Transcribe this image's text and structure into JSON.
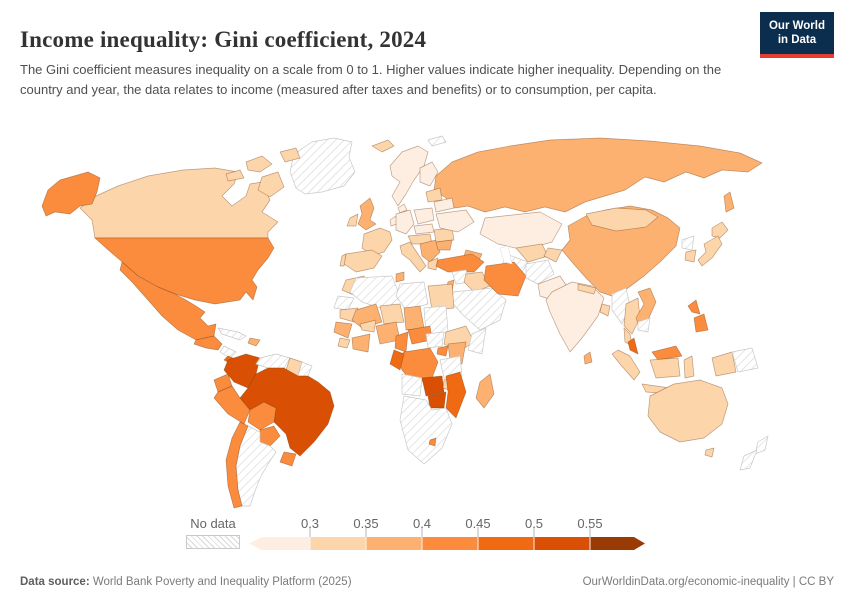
{
  "header": {
    "title": "Income inequality: Gini coefficient, 2024",
    "subtitle": "The Gini coefficient measures inequality on a scale from 0 to 1. Higher values indicate higher inequality. Depending on the country and year, the data relates to income (measured after taxes and benefits) or to consumption, per capita.",
    "logo_line1": "Our World",
    "logo_line2": "in Data",
    "logo_bg": "#0c2e4e",
    "logo_accent": "#e23e32"
  },
  "legend": {
    "no_data_label": "No data",
    "tick_labels": [
      "0.3",
      "0.35",
      "0.4",
      "0.45",
      "0.5",
      "0.55"
    ],
    "palette": [
      "#fdeee1",
      "#fdd5ab",
      "#fdb171",
      "#fb8c3d",
      "#f06913",
      "#d94f04",
      "#9a3a04"
    ],
    "no_data_pattern": "diagonal-hatch",
    "hatch_line_color": "#d8d8d8",
    "hatch_border_color": "#c9c9c9"
  },
  "footer": {
    "source_label": "Data source:",
    "source_text": " World Bank Poverty and Inequality Platform (2025)",
    "right_text": "OurWorldinData.org/economic-inequality | CC BY"
  },
  "chart_data": {
    "type": "heatmap",
    "subtype": "choropleth-world-map",
    "title": "Income inequality: Gini coefficient, 2024",
    "measure": "Gini coefficient (scale 0 to 1)",
    "bins": [
      "<0.3",
      "0.3–0.35",
      "0.35–0.4",
      "0.4–0.45",
      "0.45–0.5",
      "0.5–0.55",
      ">0.55",
      "No data"
    ],
    "legend_ticks": [
      0.3,
      0.35,
      0.4,
      0.45,
      0.5,
      0.55
    ],
    "regions": [
      {
        "id": "russia",
        "name": "Russia",
        "bin": 2
      },
      {
        "id": "sakhalin",
        "name": "Russia (Sakhalin)",
        "bin": 2
      },
      {
        "id": "greenland",
        "name": "Greenland",
        "bin": "nd"
      },
      {
        "id": "canada",
        "name": "Canada",
        "bin": 1
      },
      {
        "id": "canada-island-1",
        "name": "Canada (Arctic islands)",
        "bin": 1
      },
      {
        "id": "canada-island-2",
        "name": "Canada (Arctic islands)",
        "bin": 1
      },
      {
        "id": "canada-island-3",
        "name": "Canada (Arctic islands)",
        "bin": 1
      },
      {
        "id": "baffin-island",
        "name": "Canada (Baffin Island)",
        "bin": 1
      },
      {
        "id": "alaska",
        "name": "United States (Alaska)",
        "bin": 3
      },
      {
        "id": "usa",
        "name": "United States",
        "bin": 3
      },
      {
        "id": "mexico",
        "name": "Mexico",
        "bin": 3
      },
      {
        "id": "central-america",
        "name": "Central America",
        "bin": 3
      },
      {
        "id": "nicaragua",
        "name": "Nicaragua",
        "bin": "nd"
      },
      {
        "id": "costa-rica-panama",
        "name": "Costa Rica / Panama",
        "bin": 4
      },
      {
        "id": "cuba",
        "name": "Cuba",
        "bin": "nd"
      },
      {
        "id": "hispaniola",
        "name": "Dominican Republic / Haiti",
        "bin": 2
      },
      {
        "id": "colombia",
        "name": "Colombia",
        "bin": 5
      },
      {
        "id": "venezuela",
        "name": "Venezuela",
        "bin": "nd"
      },
      {
        "id": "guyana",
        "name": "Guyana",
        "bin": 1
      },
      {
        "id": "suriname",
        "name": "Suriname",
        "bin": "nd"
      },
      {
        "id": "ecuador",
        "name": "Ecuador",
        "bin": 3
      },
      {
        "id": "peru",
        "name": "Peru",
        "bin": 3
      },
      {
        "id": "bolivia",
        "name": "Bolivia",
        "bin": 3
      },
      {
        "id": "brazil",
        "name": "Brazil",
        "bin": 5
      },
      {
        "id": "paraguay",
        "name": "Paraguay",
        "bin": 3
      },
      {
        "id": "uruguay",
        "name": "Uruguay",
        "bin": 3
      },
      {
        "id": "argentina",
        "name": "Argentina",
        "bin": "nd"
      },
      {
        "id": "chile",
        "name": "Chile",
        "bin": 3
      },
      {
        "id": "iceland",
        "name": "Iceland",
        "bin": 1
      },
      {
        "id": "norway-sweden",
        "name": "Norway / Sweden",
        "bin": 0
      },
      {
        "id": "finland",
        "name": "Finland",
        "bin": 0
      },
      {
        "id": "svalbard",
        "name": "Svalbard",
        "bin": "nd"
      },
      {
        "id": "denmark",
        "name": "Denmark",
        "bin": 0
      },
      {
        "id": "uk",
        "name": "United Kingdom",
        "bin": 2
      },
      {
        "id": "ireland",
        "name": "Ireland",
        "bin": 1
      },
      {
        "id": "france",
        "name": "France",
        "bin": 1
      },
      {
        "id": "spain",
        "name": "Spain",
        "bin": 1
      },
      {
        "id": "portugal",
        "name": "Portugal",
        "bin": 1
      },
      {
        "id": "benelux",
        "name": "Benelux",
        "bin": 0
      },
      {
        "id": "germany",
        "name": "Germany",
        "bin": 0
      },
      {
        "id": "poland",
        "name": "Poland",
        "bin": 0
      },
      {
        "id": "czech-slovakia",
        "name": "Czechia / Slovakia",
        "bin": 0
      },
      {
        "id": "austria-hungary",
        "name": "Austria / Hungary",
        "bin": 1
      },
      {
        "id": "italy",
        "name": "Italy",
        "bin": 1
      },
      {
        "id": "balkans",
        "name": "Western Balkans",
        "bin": 2
      },
      {
        "id": "greece",
        "name": "Greece",
        "bin": 1
      },
      {
        "id": "romania",
        "name": "Romania",
        "bin": 1
      },
      {
        "id": "bulgaria",
        "name": "Bulgaria",
        "bin": 2
      },
      {
        "id": "ukraine",
        "name": "Ukraine",
        "bin": 0
      },
      {
        "id": "belarus",
        "name": "Belarus",
        "bin": 0
      },
      {
        "id": "baltics",
        "name": "Baltic states",
        "bin": 1
      },
      {
        "id": "kazakhstan",
        "name": "Kazakhstan",
        "bin": 0
      },
      {
        "id": "uzbekistan",
        "name": "Uzbekistan",
        "bin": 1
      },
      {
        "id": "turkmenistan",
        "name": "Turkmenistan",
        "bin": "nd"
      },
      {
        "id": "kyrgyzstan-tajikistan",
        "name": "Kyrgyzstan / Tajikistan",
        "bin": 1
      },
      {
        "id": "caucasus",
        "name": "Caucasus",
        "bin": 2
      },
      {
        "id": "turkey",
        "name": "Turkey",
        "bin": 3
      },
      {
        "id": "syria",
        "name": "Syria",
        "bin": "nd"
      },
      {
        "id": "israel-jordan",
        "name": "Israel / Jordan",
        "bin": 2
      },
      {
        "id": "iraq",
        "name": "Iraq",
        "bin": 1
      },
      {
        "id": "saudi-arabia",
        "name": "Arabian Peninsula",
        "bin": "nd"
      },
      {
        "id": "iran",
        "name": "Iran",
        "bin": 3
      },
      {
        "id": "afghanistan",
        "name": "Afghanistan",
        "bin": "nd"
      },
      {
        "id": "pakistan",
        "name": "Pakistan",
        "bin": 0
      },
      {
        "id": "india",
        "name": "India",
        "bin": 0
      },
      {
        "id": "nepal",
        "name": "Nepal",
        "bin": 1
      },
      {
        "id": "bangladesh",
        "name": "Bangladesh",
        "bin": 1
      },
      {
        "id": "sri-lanka",
        "name": "Sri Lanka",
        "bin": 2
      },
      {
        "id": "china",
        "name": "China",
        "bin": 2
      },
      {
        "id": "mongolia",
        "name": "Mongolia",
        "bin": 1
      },
      {
        "id": "north-korea",
        "name": "North Korea",
        "bin": "nd"
      },
      {
        "id": "south-korea",
        "name": "South Korea",
        "bin": 1
      },
      {
        "id": "japan-north",
        "name": "Japan (Hokkaido)",
        "bin": 1
      },
      {
        "id": "japan-south",
        "name": "Japan",
        "bin": 1
      },
      {
        "id": "myanmar",
        "name": "Myanmar",
        "bin": "nd"
      },
      {
        "id": "thailand",
        "name": "Thailand",
        "bin": 1
      },
      {
        "id": "thailand-peninsula",
        "name": "Thailand (peninsula)",
        "bin": 1
      },
      {
        "id": "vietnam-laos",
        "name": "Vietnam / Laos",
        "bin": 2
      },
      {
        "id": "cambodia",
        "name": "Cambodia",
        "bin": "nd"
      },
      {
        "id": "malaysia-peninsular",
        "name": "Malaysia (peninsular)",
        "bin": 4
      },
      {
        "id": "malaysia-borneo",
        "name": "Malaysia (Borneo)",
        "bin": 3
      },
      {
        "id": "sumatra",
        "name": "Indonesia (Sumatra)",
        "bin": 1
      },
      {
        "id": "kalimantan",
        "name": "Indonesia (Kalimantan)",
        "bin": 1
      },
      {
        "id": "java",
        "name": "Indonesia (Java)",
        "bin": 1
      },
      {
        "id": "sulawesi",
        "name": "Indonesia (Sulawesi)",
        "bin": 1
      },
      {
        "id": "west-papua",
        "name": "Indonesia (Papua)",
        "bin": 1
      },
      {
        "id": "papua-new-guinea",
        "name": "Papua New Guinea",
        "bin": "nd"
      },
      {
        "id": "philippines-north",
        "name": "Philippines (Luzon)",
        "bin": 3
      },
      {
        "id": "philippines-south",
        "name": "Philippines (Mindanao)",
        "bin": 3
      },
      {
        "id": "morocco",
        "name": "Morocco",
        "bin": 1
      },
      {
        "id": "western-sahara",
        "name": "Western Sahara",
        "bin": "nd"
      },
      {
        "id": "algeria",
        "name": "Algeria",
        "bin": "nd"
      },
      {
        "id": "tunisia",
        "name": "Tunisia",
        "bin": 2
      },
      {
        "id": "libya",
        "name": "Libya",
        "bin": "nd"
      },
      {
        "id": "egypt",
        "name": "Egypt",
        "bin": 1
      },
      {
        "id": "mauritania",
        "name": "Mauritania",
        "bin": 1
      },
      {
        "id": "mali",
        "name": "Mali",
        "bin": 2
      },
      {
        "id": "niger",
        "name": "Niger",
        "bin": 1
      },
      {
        "id": "chad",
        "name": "Chad",
        "bin": 2
      },
      {
        "id": "sudan",
        "name": "Sudan",
        "bin": "nd"
      },
      {
        "id": "senegal-guinea",
        "name": "Senegal / Guinea",
        "bin": 2
      },
      {
        "id": "sierra-leone-liberia",
        "name": "Sierra Leone / Liberia",
        "bin": 1
      },
      {
        "id": "burkina-faso",
        "name": "Burkina Faso",
        "bin": 1
      },
      {
        "id": "ivory-coast-ghana",
        "name": "Côte d'Ivoire / Ghana",
        "bin": 2
      },
      {
        "id": "nigeria",
        "name": "Nigeria",
        "bin": 2
      },
      {
        "id": "cameroon",
        "name": "Cameroon",
        "bin": 3
      },
      {
        "id": "central-african-republic",
        "name": "Central African Republic",
        "bin": 3
      },
      {
        "id": "south-sudan",
        "name": "South Sudan",
        "bin": "nd"
      },
      {
        "id": "ethiopia",
        "name": "Ethiopia",
        "bin": 1
      },
      {
        "id": "somalia",
        "name": "Somalia",
        "bin": "nd"
      },
      {
        "id": "kenya",
        "name": "Kenya",
        "bin": 2
      },
      {
        "id": "uganda",
        "name": "Uganda",
        "bin": 3
      },
      {
        "id": "drc",
        "name": "Democratic Republic of Congo",
        "bin": 3
      },
      {
        "id": "congo-gabon",
        "name": "Congo / Gabon",
        "bin": 4
      },
      {
        "id": "tanzania",
        "name": "Tanzania",
        "bin": "nd"
      },
      {
        "id": "angola",
        "name": "Angola",
        "bin": "nd"
      },
      {
        "id": "zambia",
        "name": "Zambia",
        "bin": 5
      },
      {
        "id": "malawi",
        "name": "Malawi",
        "bin": 1
      },
      {
        "id": "zimbabwe",
        "name": "Zimbabwe",
        "bin": 5
      },
      {
        "id": "mozambique",
        "name": "Mozambique",
        "bin": 4
      },
      {
        "id": "southern-africa",
        "name": "South Africa / Namibia / Botswana",
        "bin": "nd"
      },
      {
        "id": "lesotho",
        "name": "Lesotho",
        "bin": 3
      },
      {
        "id": "madagascar",
        "name": "Madagascar",
        "bin": 2
      },
      {
        "id": "australia",
        "name": "Australia",
        "bin": 1
      },
      {
        "id": "tasmania",
        "name": "Australia (Tasmania)",
        "bin": 1
      },
      {
        "id": "new-zealand-north",
        "name": "New Zealand (North Island)",
        "bin": "nd"
      },
      {
        "id": "new-zealand-south",
        "name": "New Zealand (South Island)",
        "bin": "nd"
      }
    ]
  }
}
